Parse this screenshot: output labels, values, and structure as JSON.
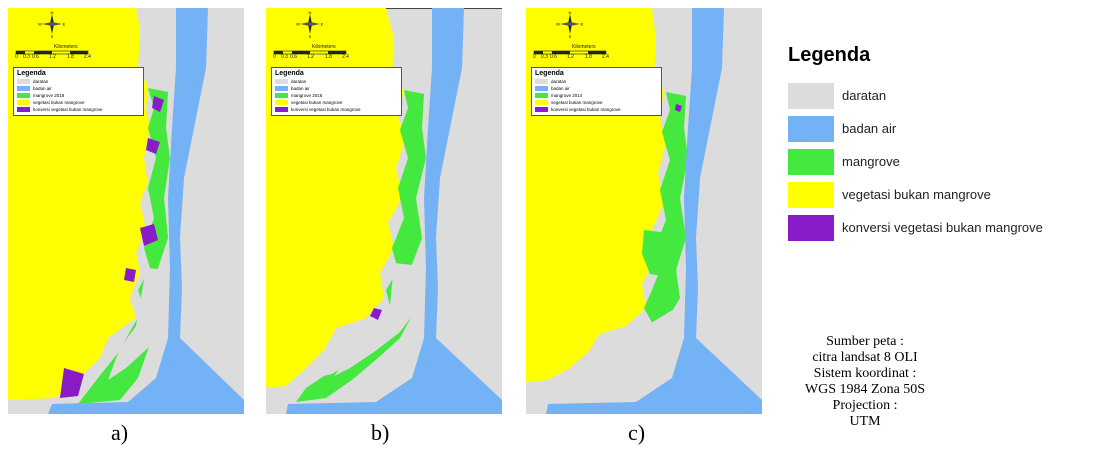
{
  "colors": {
    "daratan": "#dcdcdc",
    "badan_air": "#73b2f5",
    "mangrove": "#44e83e",
    "vegetasi": "#ffff00",
    "konversi": "#8a1bc8"
  },
  "panels": [
    {
      "caption": "a)",
      "legend_title": "Legenda",
      "legend_items": [
        "daratan",
        "badan air",
        "mangrove 2018",
        "vegetasi bukan mangrove",
        "konversi vegetasi bukan mangrove"
      ],
      "scale_title": "Kilometers",
      "scale_labels": [
        "0",
        "0.3",
        "0.6",
        "1.2",
        "1.8",
        "2.4"
      ],
      "compass": {
        "n": "N",
        "s": "S",
        "e": "E",
        "w": "W"
      }
    },
    {
      "caption": "b)",
      "legend_title": "Legenda",
      "legend_items": [
        "daratan",
        "badan air",
        "mangrove 2016",
        "vegetasi bukan mangrove",
        "konversi vegetasi bukan mangrove"
      ],
      "scale_title": "Kilometers",
      "scale_labels": [
        "0",
        "0.3",
        "0.6",
        "1.2",
        "1.8",
        "2.4"
      ],
      "compass": {
        "n": "N",
        "s": "S",
        "e": "E",
        "w": "W"
      }
    },
    {
      "caption": "c)",
      "legend_title": "Legenda",
      "legend_items": [
        "daratan",
        "badan air",
        "mangrove 2014",
        "vegetasi bukan mangrove",
        "konversi vegetasi bukan mangrove"
      ],
      "scale_title": "Kilometers",
      "scale_labels": [
        "0",
        "0.3",
        "0.6",
        "1.2",
        "1.8",
        "2.4"
      ],
      "compass": {
        "n": "N",
        "s": "S",
        "e": "E",
        "w": "W"
      }
    }
  ],
  "legend": {
    "title": "Legenda",
    "items": [
      {
        "label": "daratan",
        "color_key": "daratan"
      },
      {
        "label": "badan air",
        "color_key": "badan_air"
      },
      {
        "label": "mangrove",
        "color_key": "mangrove"
      },
      {
        "label": "vegetasi bukan mangrove",
        "color_key": "vegetasi"
      },
      {
        "label": "konversi vegetasi bukan mangrove",
        "color_key": "konversi"
      }
    ]
  },
  "source_lines": [
    "Sumber peta :",
    "citra landsat 8 OLI",
    "Sistem koordinat :",
    "WGS 1984 Zona 50S",
    "Projection :",
    "UTM"
  ]
}
